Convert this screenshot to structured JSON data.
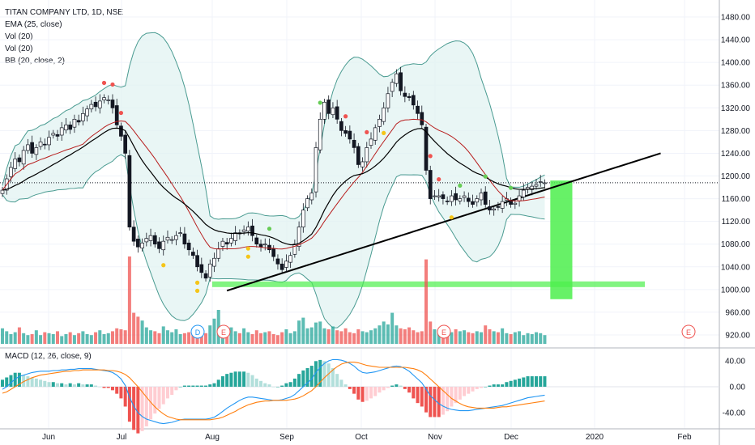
{
  "legend": {
    "symbol": "TITAN COMPANY LTD, 1D, NSE",
    "ema": "EMA (25, close)",
    "vol1": "Vol (20)",
    "vol2": "Vol (20)",
    "bb": "BB (20, close, 2)",
    "macd": "MACD (12, 26, close, 9)"
  },
  "colors": {
    "up": "#26a69a",
    "down": "#ef5350",
    "bb_fill": "#e0f2f1",
    "bb_line": "#4a9b91",
    "ema": "#000000",
    "ma2": "#b71c1c",
    "macd_line": "#2196f3",
    "signal_line": "#ff7f0e",
    "highlight": "#4cef4c",
    "dot_red": "#ef5350",
    "dot_yellow": "#f5c518",
    "dot_green": "#66cc55"
  },
  "chart_data": {
    "type": "candlestick",
    "title": "TITAN COMPANY LTD, 1D, NSE",
    "price_axis": {
      "ticks": [
        "1480.00",
        "1440.00",
        "1400.00",
        "1360.00",
        "1320.00",
        "1280.00",
        "1240.00",
        "1200.00",
        "1160.00",
        "1120.00",
        "1080.00",
        "1040.00",
        "1000.00",
        "960.00",
        "920.00"
      ],
      "range": [
        900,
        1510
      ]
    },
    "macd_axis": {
      "ticks": [
        "40.00",
        "0.00",
        "-40.00"
      ],
      "range": [
        -65,
        60
      ]
    },
    "time_axis": {
      "labels": [
        "Jun",
        "Jul",
        "Aug",
        "Sep",
        "Oct",
        "Nov",
        "Dec",
        "2020",
        "Feb"
      ]
    },
    "price_line": 1188,
    "support_level": 1010,
    "trendline": {
      "from": [
        "2019-08-07",
        998
      ],
      "to": [
        "2020-01-28",
        1240
      ]
    },
    "target_box": {
      "from_date": "2019-12-17",
      "to_date": "2019-12-26",
      "low": 983,
      "high": 1192
    },
    "earnings_markers": [
      "D",
      "E",
      "E",
      "E"
    ],
    "closes": [
      1175,
      1195,
      1215,
      1230,
      1225,
      1245,
      1255,
      1240,
      1250,
      1260,
      1255,
      1268,
      1275,
      1270,
      1285,
      1290,
      1282,
      1300,
      1295,
      1310,
      1318,
      1326,
      1322,
      1332,
      1338,
      1334,
      1320,
      1290,
      1270,
      1240,
      1110,
      1085,
      1075,
      1082,
      1090,
      1095,
      1080,
      1072,
      1085,
      1092,
      1088,
      1095,
      1100,
      1080,
      1070,
      1060,
      1040,
      1030,
      1020,
      1045,
      1055,
      1072,
      1085,
      1080,
      1090,
      1100,
      1098,
      1105,
      1110,
      1095,
      1080,
      1075,
      1080,
      1070,
      1058,
      1045,
      1035,
      1050,
      1060,
      1080,
      1110,
      1140,
      1160,
      1170,
      1250,
      1300,
      1330,
      1310,
      1320,
      1300,
      1280,
      1275,
      1265,
      1250,
      1220,
      1225,
      1250,
      1265,
      1285,
      1300,
      1320,
      1345,
      1365,
      1380,
      1350,
      1340,
      1338,
      1325,
      1310,
      1290,
      1210,
      1160,
      1165,
      1165,
      1160,
      1155,
      1165,
      1158,
      1160,
      1165,
      1155,
      1150,
      1160,
      1170,
      1150,
      1140,
      1142,
      1145,
      1155,
      1160,
      1150,
      1152,
      1165,
      1175,
      1180,
      1182,
      1185,
      1190,
      1188
    ],
    "volumes": [
      1.6,
      1.3,
      1.0,
      1.2,
      1.7,
      1.1,
      0.9,
      1.0,
      1.4,
      0.9,
      1.2,
      1.1,
      1.0,
      1.3,
      0.8,
      1.0,
      1.2,
      0.9,
      1.1,
      1.3,
      1.0,
      0.9,
      1.2,
      1.4,
      1.0,
      1.1,
      1.3,
      1.6,
      1.5,
      1.4,
      9.0,
      3.2,
      2.8,
      2.4,
      1.7,
      1.4,
      1.3,
      1.1,
      1.8,
      1.4,
      1.2,
      1.5,
      1.0,
      1.1,
      1.2,
      1.4,
      1.3,
      1.0,
      1.1,
      1.9,
      2.6,
      3.5,
      1.9,
      1.4,
      1.7,
      1.3,
      1.1,
      1.6,
      1.2,
      1.0,
      1.4,
      1.1,
      1.2,
      1.3,
      1.0,
      0.9,
      1.2,
      1.5,
      1.1,
      1.3,
      2.4,
      2.7,
      1.6,
      1.7,
      2.2,
      2.3,
      1.6,
      1.5,
      1.8,
      1.4,
      1.3,
      1.6,
      1.2,
      1.1,
      1.5,
      1.3,
      1.2,
      1.4,
      1.6,
      1.9,
      2.3,
      2.0,
      3.2,
      1.9,
      1.6,
      1.5,
      1.7,
      1.4,
      1.2,
      1.3,
      8.7,
      2.3,
      1.5,
      1.4,
      1.6,
      1.3,
      1.2,
      1.5,
      1.3,
      1.4,
      1.2,
      1.1,
      1.3,
      1.2,
      1.9,
      1.5,
      1.3,
      1.2,
      1.6,
      1.1,
      1.0,
      1.2,
      1.3,
      0.9,
      1.1,
      1.0,
      1.2,
      1.1,
      0.9
    ],
    "macd_line": [
      -4,
      0,
      6,
      12,
      16,
      18,
      20,
      22,
      23,
      24,
      24,
      24,
      25,
      25,
      26,
      26,
      27,
      27,
      28,
      28,
      28,
      28,
      27,
      26,
      25,
      24,
      22,
      18,
      12,
      2,
      -16,
      -30,
      -40,
      -46,
      -50,
      -52,
      -54,
      -56,
      -57,
      -56,
      -55,
      -53,
      -51,
      -50,
      -50,
      -50,
      -50,
      -50,
      -50,
      -49,
      -47,
      -43,
      -38,
      -33,
      -29,
      -25,
      -21,
      -18,
      -16,
      -16,
      -17,
      -18,
      -19,
      -20,
      -21,
      -21,
      -20,
      -18,
      -16,
      -12,
      -6,
      0,
      6,
      12,
      22,
      30,
      36,
      40,
      42,
      42,
      41,
      39,
      36,
      32,
      26,
      22,
      21,
      22,
      23,
      25,
      27,
      29,
      31,
      32,
      31,
      28,
      24,
      18,
      12,
      6,
      -4,
      -14,
      -20,
      -26,
      -30,
      -33,
      -35,
      -36,
      -37,
      -37,
      -37,
      -36,
      -35,
      -34,
      -33,
      -32,
      -31,
      -30,
      -29,
      -27,
      -25,
      -23,
      -21,
      -19,
      -17,
      -16,
      -15,
      -14,
      -13
    ],
    "signal_line": [
      -10,
      -8,
      -4,
      0,
      4,
      8,
      11,
      14,
      16,
      18,
      19,
      20,
      21,
      22,
      23,
      24,
      24,
      25,
      25,
      26,
      26,
      26,
      26,
      26,
      26,
      25,
      25,
      24,
      22,
      19,
      14,
      7,
      0,
      -8,
      -16,
      -24,
      -31,
      -37,
      -42,
      -46,
      -48,
      -50,
      -51,
      -51,
      -51,
      -51,
      -51,
      -51,
      -51,
      -51,
      -50,
      -49,
      -47,
      -44,
      -41,
      -38,
      -34,
      -31,
      -28,
      -26,
      -24,
      -23,
      -22,
      -22,
      -21,
      -21,
      -21,
      -21,
      -20,
      -19,
      -17,
      -14,
      -10,
      -6,
      0,
      7,
      14,
      20,
      26,
      31,
      35,
      37,
      38,
      38,
      37,
      35,
      33,
      32,
      31,
      30,
      30,
      30,
      30,
      30,
      30,
      30,
      29,
      28,
      26,
      23,
      18,
      12,
      6,
      0,
      -6,
      -12,
      -18,
      -22,
      -26,
      -29,
      -31,
      -32,
      -33,
      -33,
      -33,
      -33,
      -33,
      -32,
      -31,
      -31,
      -30,
      -29,
      -28,
      -27,
      -26,
      -25,
      -24,
      -23,
      -22
    ]
  }
}
